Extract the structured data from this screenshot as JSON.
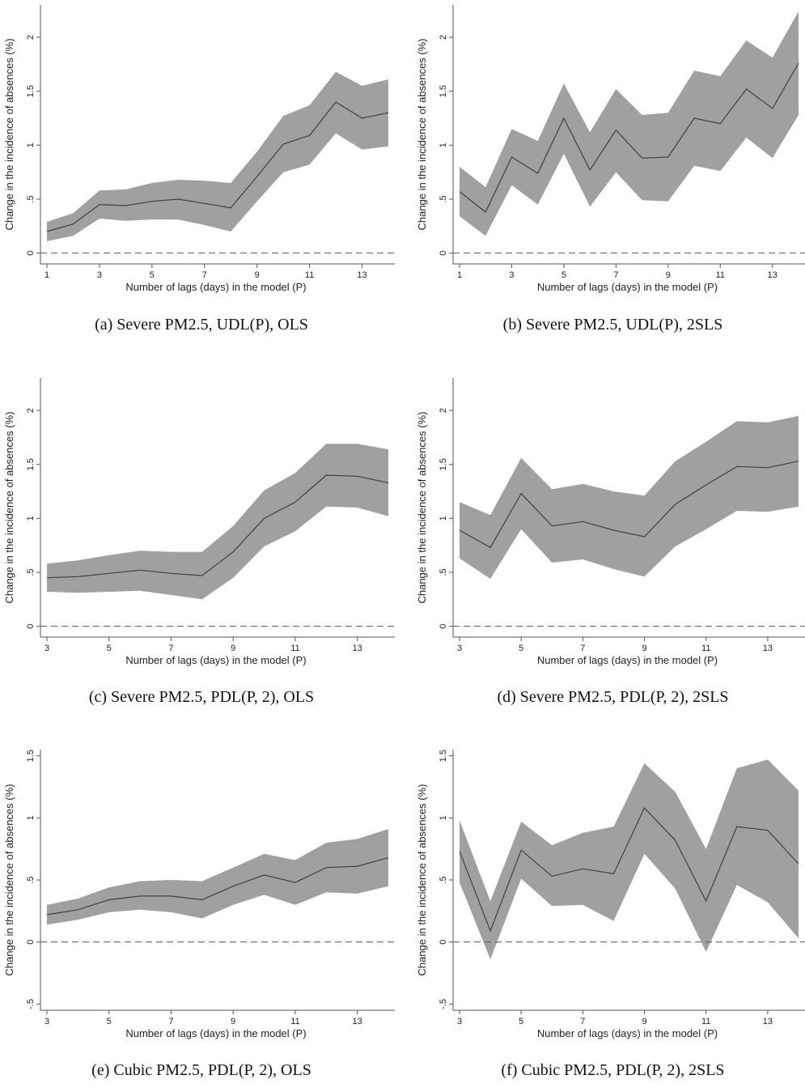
{
  "chart_data": [
    {
      "type": "line",
      "caption": "(a) Severe PM2.5, UDL(P), OLS",
      "xlabel": "Number of lags (days) in the model (P)",
      "ylabel": "Change in the incidence of absences (%)",
      "x": [
        1,
        2,
        3,
        4,
        5,
        6,
        7,
        8,
        9,
        10,
        11,
        12,
        13,
        14
      ],
      "xticks": [
        1,
        3,
        5,
        7,
        9,
        11,
        13
      ],
      "xlim": [
        1,
        14
      ],
      "yticks": [
        0,
        0.5,
        1,
        1.5,
        2
      ],
      "ytick_labels": [
        "0",
        ".5",
        "1",
        "1.5",
        "2"
      ],
      "ylim": [
        -0.1,
        2.3
      ],
      "series": [
        {
          "estimate": [
            0.2,
            0.27,
            0.45,
            0.44,
            0.48,
            0.5,
            0.46,
            0.42,
            0.71,
            1.01,
            1.09,
            1.4,
            1.25,
            1.3
          ],
          "ci_upper": [
            0.29,
            0.37,
            0.58,
            0.59,
            0.65,
            0.68,
            0.67,
            0.65,
            0.94,
            1.27,
            1.37,
            1.68,
            1.55,
            1.61
          ],
          "ci_lower": [
            0.11,
            0.16,
            0.32,
            0.3,
            0.31,
            0.31,
            0.26,
            0.2,
            0.48,
            0.75,
            0.82,
            1.11,
            0.96,
            0.99
          ]
        }
      ],
      "reference_line": 0
    },
    {
      "type": "line",
      "caption": "(b) Severe PM2.5, UDL(P), 2SLS",
      "xlabel": "Number of lags (days) in the model (P)",
      "ylabel": "Change in the incidence of absences (%)",
      "x": [
        1,
        2,
        3,
        4,
        5,
        6,
        7,
        8,
        9,
        10,
        11,
        12,
        13,
        14
      ],
      "xticks": [
        1,
        3,
        5,
        7,
        9,
        11,
        13
      ],
      "xlim": [
        1,
        14
      ],
      "yticks": [
        0,
        0.5,
        1,
        1.5,
        2
      ],
      "ytick_labels": [
        "0",
        ".5",
        "1",
        "1.5",
        "2"
      ],
      "ylim": [
        -0.1,
        2.3
      ],
      "series": [
        {
          "estimate": [
            0.57,
            0.38,
            0.89,
            0.74,
            1.25,
            0.77,
            1.14,
            0.88,
            0.89,
            1.25,
            1.2,
            1.52,
            1.34,
            1.76
          ],
          "ci_upper": [
            0.8,
            0.61,
            1.15,
            1.04,
            1.57,
            1.12,
            1.52,
            1.28,
            1.3,
            1.69,
            1.64,
            1.97,
            1.81,
            2.24
          ],
          "ci_lower": [
            0.34,
            0.16,
            0.63,
            0.45,
            0.92,
            0.43,
            0.75,
            0.49,
            0.48,
            0.81,
            0.76,
            1.07,
            0.88,
            1.28
          ]
        }
      ],
      "reference_line": 0
    },
    {
      "type": "line",
      "caption": "(c) Severe PM2.5, PDL(P, 2), OLS",
      "xlabel": "Number of lags (days) in the model (P)",
      "ylabel": "Change in the incidence of absences (%)",
      "x": [
        3,
        4,
        5,
        6,
        7,
        8,
        9,
        10,
        11,
        12,
        13,
        14
      ],
      "xticks": [
        3,
        5,
        7,
        9,
        11,
        13
      ],
      "xlim": [
        3,
        14
      ],
      "yticks": [
        0,
        0.5,
        1,
        1.5,
        2
      ],
      "ytick_labels": [
        "0",
        ".5",
        "1",
        "1.5",
        "2"
      ],
      "ylim": [
        -0.1,
        2.3
      ],
      "series": [
        {
          "estimate": [
            0.45,
            0.46,
            0.49,
            0.52,
            0.49,
            0.47,
            0.69,
            1.0,
            1.15,
            1.4,
            1.39,
            1.33
          ],
          "ci_upper": [
            0.58,
            0.61,
            0.66,
            0.7,
            0.69,
            0.69,
            0.93,
            1.26,
            1.42,
            1.69,
            1.69,
            1.64
          ],
          "ci_lower": [
            0.32,
            0.31,
            0.32,
            0.33,
            0.29,
            0.25,
            0.45,
            0.74,
            0.88,
            1.11,
            1.1,
            1.02
          ]
        }
      ],
      "reference_line": 0
    },
    {
      "type": "line",
      "caption": "(d) Severe PM2.5, PDL(P, 2), 2SLS",
      "xlabel": "Number of lags (days) in the model (P)",
      "ylabel": "Change in the incidence of absences (%)",
      "x": [
        3,
        4,
        5,
        6,
        7,
        8,
        9,
        10,
        11,
        12,
        13,
        14
      ],
      "xticks": [
        3,
        5,
        7,
        9,
        11,
        13
      ],
      "xlim": [
        3,
        14
      ],
      "yticks": [
        0,
        0.5,
        1,
        1.5,
        2
      ],
      "ytick_labels": [
        "0",
        ".5",
        "1",
        "1.5",
        "2"
      ],
      "ylim": [
        -0.1,
        2.3
      ],
      "series": [
        {
          "estimate": [
            0.89,
            0.73,
            1.23,
            0.93,
            0.97,
            0.89,
            0.83,
            1.13,
            1.31,
            1.48,
            1.47,
            1.53
          ],
          "ci_upper": [
            1.15,
            1.03,
            1.56,
            1.27,
            1.32,
            1.25,
            1.21,
            1.53,
            1.71,
            1.9,
            1.89,
            1.95
          ],
          "ci_lower": [
            0.63,
            0.44,
            0.9,
            0.59,
            0.62,
            0.53,
            0.46,
            0.74,
            0.9,
            1.07,
            1.06,
            1.11
          ]
        }
      ],
      "reference_line": 0
    },
    {
      "type": "line",
      "caption": "(e) Cubic PM2.5, PDL(P, 2), OLS",
      "xlabel": "Number of lags (days) in the model (P)",
      "ylabel": "Change in the incidence of absences (%)",
      "x": [
        3,
        4,
        5,
        6,
        7,
        8,
        9,
        10,
        11,
        12,
        13,
        14
      ],
      "xticks": [
        3,
        5,
        7,
        9,
        11,
        13
      ],
      "xlim": [
        3,
        14
      ],
      "yticks": [
        -0.5,
        0,
        0.5,
        1,
        1.5
      ],
      "ytick_labels": [
        "-.5",
        "0",
        ".5",
        "1",
        "1.5"
      ],
      "ylim": [
        -0.55,
        1.55
      ],
      "series": [
        {
          "estimate": [
            0.22,
            0.26,
            0.34,
            0.37,
            0.37,
            0.34,
            0.45,
            0.54,
            0.48,
            0.6,
            0.61,
            0.68
          ],
          "ci_upper": [
            0.3,
            0.35,
            0.44,
            0.49,
            0.5,
            0.49,
            0.6,
            0.71,
            0.66,
            0.8,
            0.83,
            0.91
          ],
          "ci_lower": [
            0.14,
            0.18,
            0.24,
            0.26,
            0.24,
            0.19,
            0.3,
            0.38,
            0.3,
            0.4,
            0.39,
            0.45
          ]
        }
      ],
      "reference_line": 0
    },
    {
      "type": "line",
      "caption": "(f) Cubic PM2.5, PDL(P, 2), 2SLS",
      "xlabel": "Number of lags (days) in the model (P)",
      "ylabel": "Change in the incidence of absences (%)",
      "x": [
        3,
        4,
        5,
        6,
        7,
        8,
        9,
        10,
        11,
        12,
        13,
        14
      ],
      "xticks": [
        3,
        5,
        7,
        9,
        11,
        13
      ],
      "xlim": [
        3,
        14
      ],
      "yticks": [
        -0.5,
        0,
        0.5,
        1,
        1.5
      ],
      "ytick_labels": [
        "-.5",
        "0",
        ".5",
        "1",
        "1.5"
      ],
      "ylim": [
        -0.55,
        1.55
      ],
      "series": [
        {
          "estimate": [
            0.73,
            0.09,
            0.74,
            0.53,
            0.59,
            0.55,
            1.08,
            0.82,
            0.33,
            0.93,
            0.9,
            0.63
          ],
          "ci_upper": [
            0.98,
            0.33,
            0.97,
            0.78,
            0.88,
            0.93,
            1.44,
            1.21,
            0.75,
            1.4,
            1.47,
            1.22
          ],
          "ci_lower": [
            0.48,
            -0.14,
            0.51,
            0.29,
            0.3,
            0.17,
            0.71,
            0.43,
            -0.08,
            0.46,
            0.32,
            0.03
          ]
        }
      ],
      "reference_line": 0
    }
  ],
  "style": {
    "band_color": "#a0a0a0",
    "line_color": "#404040",
    "axis_color": "#555555",
    "reference_line_color": "#555555"
  }
}
